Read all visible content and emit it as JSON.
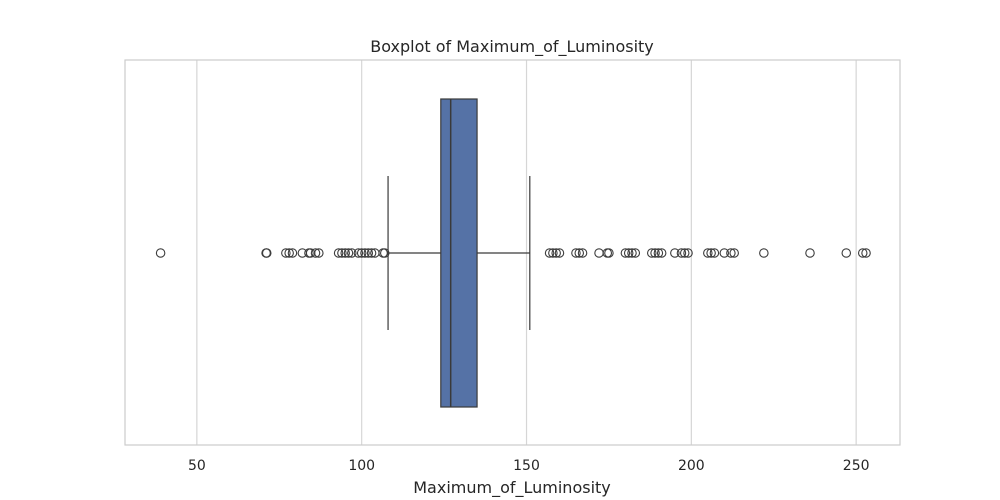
{
  "chart_data": {
    "type": "boxplot",
    "title": "Boxplot of Maximum_of_Luminosity",
    "xlabel": "Maximum_of_Luminosity",
    "ylabel": "",
    "xlim": [
      28.2,
      263.3
    ],
    "xticks": [
      50,
      100,
      150,
      200,
      250
    ],
    "grid": true,
    "orientation": "horizontal",
    "box": {
      "whisker_low": 108,
      "q1": 124,
      "median": 127,
      "q3": 135,
      "whisker_high": 151
    },
    "outliers": [
      39,
      71,
      71.2,
      77,
      78,
      79,
      82,
      84,
      84.5,
      86,
      87,
      93,
      94,
      95,
      96,
      97,
      99,
      100,
      101,
      102,
      103,
      104,
      106.5,
      107,
      157,
      158,
      159,
      160,
      165,
      166,
      167,
      172,
      174.5,
      175,
      180,
      181,
      182,
      183,
      188,
      189,
      190,
      191,
      195,
      197,
      198,
      199,
      205,
      206,
      207,
      210,
      212,
      213,
      222,
      236,
      247,
      252,
      253
    ],
    "colors": {
      "box_fill": "#5572a6",
      "box_edge": "#3a3a3a",
      "grid": "#d6d6d6",
      "frame": "#cccccc",
      "outlier_edge": "#3d3d3d"
    }
  }
}
